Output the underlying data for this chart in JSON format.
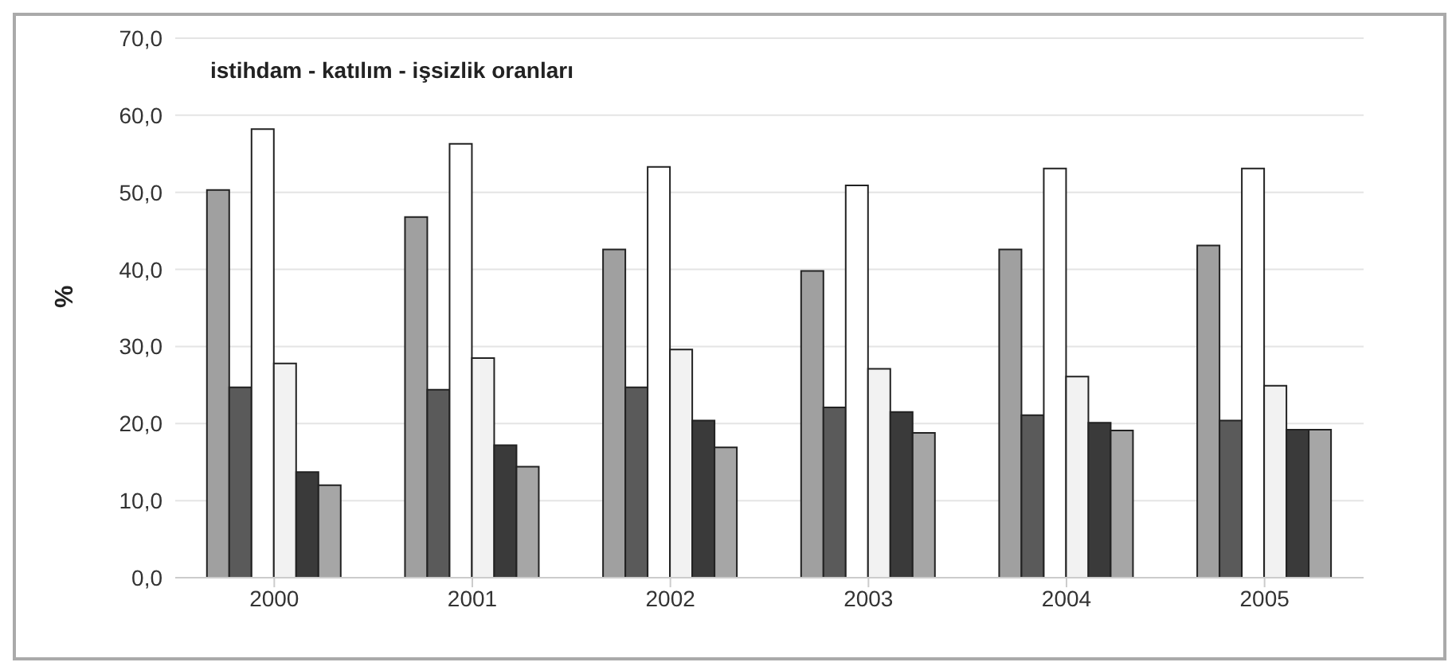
{
  "chart_data": {
    "type": "bar",
    "title": "istihdam - katılım - işsizlik oranları",
    "ylabel": "%",
    "categories": [
      "2000",
      "2001",
      "2002",
      "2003",
      "2004",
      "2005"
    ],
    "series": [
      {
        "color": "#a0a0a0",
        "values": [
          50.3,
          46.8,
          42.6,
          39.8,
          42.6,
          43.1
        ]
      },
      {
        "color": "#5a5a5a",
        "values": [
          24.7,
          24.4,
          24.7,
          22.1,
          21.1,
          20.4
        ]
      },
      {
        "color": "#ffffff",
        "values": [
          58.2,
          56.3,
          53.3,
          50.9,
          53.1,
          53.1
        ]
      },
      {
        "color": "#f2f2f2",
        "values": [
          27.8,
          28.5,
          29.6,
          27.1,
          26.1,
          24.9
        ]
      },
      {
        "color": "#3a3a3a",
        "values": [
          13.7,
          17.2,
          20.4,
          21.5,
          20.1,
          19.2
        ]
      },
      {
        "color": "#a6a6a6",
        "values": [
          12.0,
          14.4,
          16.9,
          18.8,
          19.1,
          19.2
        ]
      }
    ],
    "ylim": [
      0,
      70
    ],
    "yticks": [
      {
        "value": 0,
        "label": "0,0"
      },
      {
        "value": 10,
        "label": "10,0"
      },
      {
        "value": 20,
        "label": "20,0"
      },
      {
        "value": 30,
        "label": "30,0"
      },
      {
        "value": 40,
        "label": "40,0"
      },
      {
        "value": 50,
        "label": "50,0"
      },
      {
        "value": 60,
        "label": "60,0"
      },
      {
        "value": 70,
        "label": "70,0"
      }
    ],
    "grid": "y",
    "legend": false
  }
}
